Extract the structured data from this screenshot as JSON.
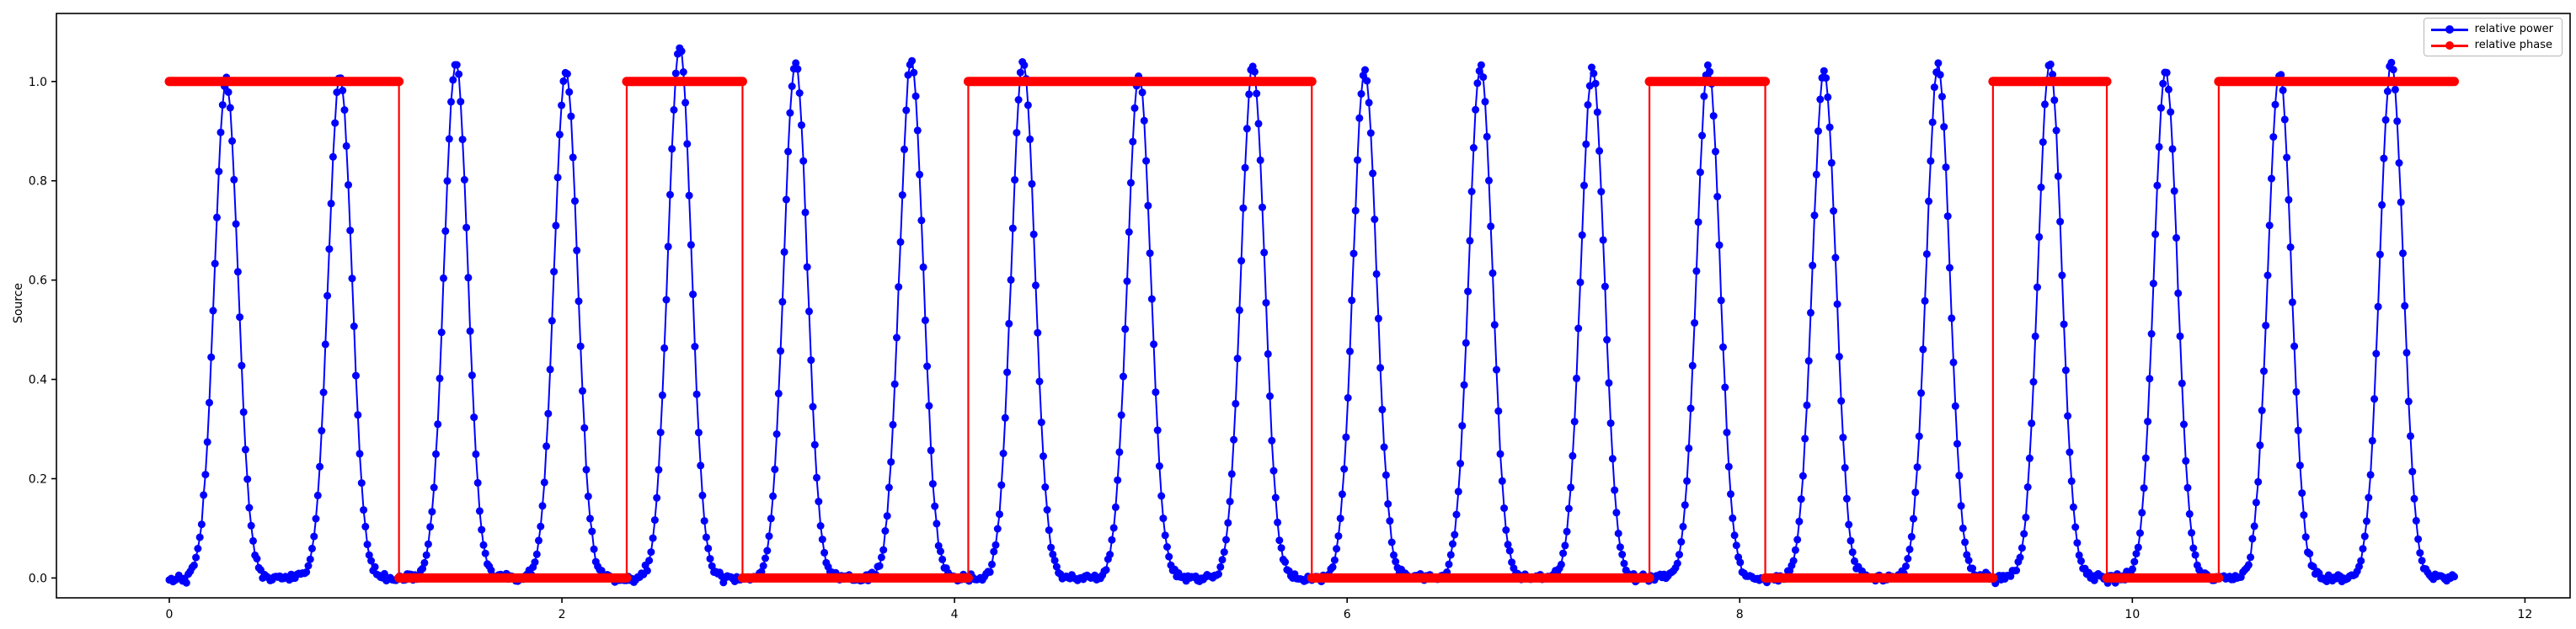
{
  "figure": {
    "title": "",
    "ylabel": "Source",
    "xlabel": "",
    "background": "#ffffff",
    "spine_color": "#000000",
    "legend": {
      "position": "upper right",
      "entries": [
        {
          "label": "relative power",
          "color": "#0000ff"
        },
        {
          "label": "relative phase",
          "color": "#ff0000"
        }
      ]
    }
  },
  "chart_data": {
    "type": "scatter",
    "title": "",
    "xlabel": "",
    "ylabel": "Source",
    "xlim": [
      -0.575,
      12.23
    ],
    "ylim": [
      -0.04,
      1.137
    ],
    "xtick_values": [
      0,
      2,
      4,
      6,
      8,
      10,
      12
    ],
    "xtick_labels": [
      "0",
      "2",
      "4",
      "6",
      "8",
      "10",
      "12"
    ],
    "ytick_values": [
      0.0,
      0.2,
      0.4,
      0.6,
      0.8,
      1.0
    ],
    "ytick_labels": [
      "0.0",
      "0.2",
      "0.4",
      "0.6",
      "0.8",
      "1.0"
    ],
    "grid": false,
    "legend_position": "upper right",
    "series": [
      {
        "name": "relative power",
        "color": "#0000ff",
        "style": "line_with_dot_markers",
        "marker_px": 9,
        "model": "sum_of_gaussian_pulses",
        "x_start": 0.0,
        "x_end": 11.64,
        "x_step": 0.0097,
        "pulse_sigma": 0.06,
        "noise_sd": 0.004,
        "pulses": [
          {
            "center": 0.29,
            "height": 1.0
          },
          {
            "center": 0.87,
            "height": 1.01
          },
          {
            "center": 1.46,
            "height": 1.04
          },
          {
            "center": 2.02,
            "height": 1.02
          },
          {
            "center": 2.6,
            "height": 1.07
          },
          {
            "center": 3.19,
            "height": 1.04
          },
          {
            "center": 3.78,
            "height": 1.04
          },
          {
            "center": 4.35,
            "height": 1.04
          },
          {
            "center": 4.94,
            "height": 1.01
          },
          {
            "center": 5.52,
            "height": 1.03
          },
          {
            "center": 6.09,
            "height": 1.02
          },
          {
            "center": 6.68,
            "height": 1.03
          },
          {
            "center": 7.25,
            "height": 1.02
          },
          {
            "center": 7.84,
            "height": 1.03
          },
          {
            "center": 8.43,
            "height": 1.02
          },
          {
            "center": 9.01,
            "height": 1.03
          },
          {
            "center": 9.58,
            "height": 1.04
          },
          {
            "center": 10.17,
            "height": 1.02
          },
          {
            "center": 10.75,
            "height": 1.02
          },
          {
            "center": 11.32,
            "height": 1.04
          }
        ]
      },
      {
        "name": "relative phase",
        "color": "#ff0000",
        "style": "square_wave_line_with_dot_markers",
        "marker_px": 10,
        "segments": [
          {
            "from": 0.0,
            "to": 1.17,
            "level": 1
          },
          {
            "from": 1.17,
            "to": 2.33,
            "level": 0
          },
          {
            "from": 2.33,
            "to": 2.92,
            "level": 1
          },
          {
            "from": 2.92,
            "to": 4.07,
            "level": 0
          },
          {
            "from": 4.07,
            "to": 5.82,
            "level": 1
          },
          {
            "from": 5.82,
            "to": 7.54,
            "level": 0
          },
          {
            "from": 7.54,
            "to": 8.13,
            "level": 1
          },
          {
            "from": 8.13,
            "to": 9.29,
            "level": 0
          },
          {
            "from": 9.29,
            "to": 9.87,
            "level": 1
          },
          {
            "from": 9.87,
            "to": 10.44,
            "level": 0
          },
          {
            "from": 10.44,
            "to": 11.64,
            "level": 1
          }
        ]
      }
    ]
  }
}
